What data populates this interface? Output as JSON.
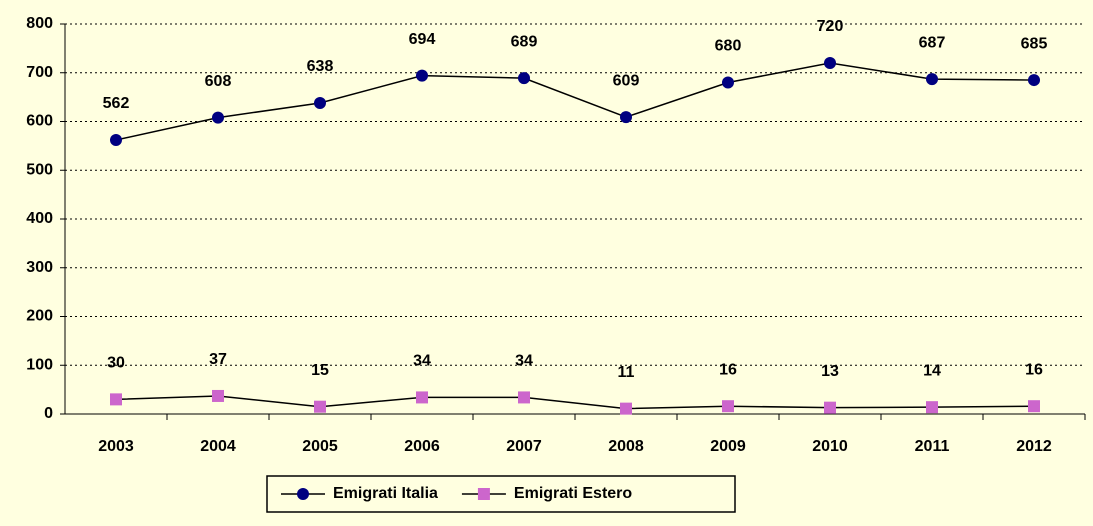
{
  "chart_data": {
    "type": "line",
    "categories": [
      "2003",
      "2004",
      "2005",
      "2006",
      "2007",
      "2008",
      "2009",
      "2010",
      "2011",
      "2012"
    ],
    "series": [
      {
        "name": "Emigrati Italia",
        "color": "#000080",
        "marker": "circle",
        "values": [
          562,
          608,
          638,
          694,
          689,
          609,
          680,
          720,
          687,
          685
        ]
      },
      {
        "name": "Emigrati Estero",
        "color": "#CC66CC",
        "marker": "square",
        "values": [
          30,
          37,
          15,
          34,
          34,
          11,
          16,
          13,
          14,
          16
        ]
      }
    ],
    "ylim": [
      0,
      800
    ],
    "yticks": [
      0,
      100,
      200,
      300,
      400,
      500,
      600,
      700,
      800
    ],
    "grid": true,
    "legend": "bottom"
  }
}
